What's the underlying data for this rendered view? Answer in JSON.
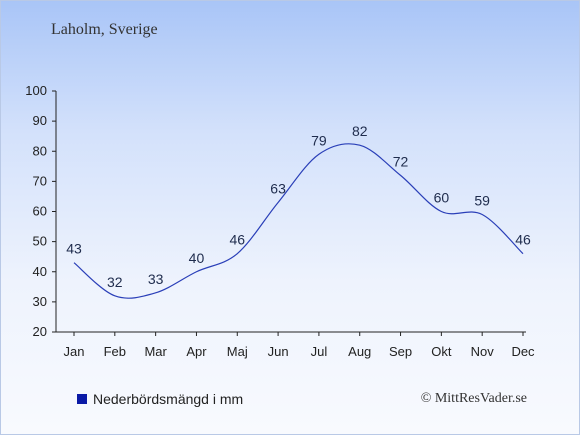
{
  "title": "Laholm, Sverige",
  "legend": {
    "label": "Nederbördsmängd i mm",
    "color": "#0a1aa6"
  },
  "copyright": "© MittResVader.se",
  "chart_data": {
    "type": "line",
    "title": "Laholm, Sverige",
    "categories": [
      "Jan",
      "Feb",
      "Mar",
      "Apr",
      "Maj",
      "Jun",
      "Jul",
      "Aug",
      "Sep",
      "Okt",
      "Nov",
      "Dec"
    ],
    "series": [
      {
        "name": "Nederbördsmängd i mm",
        "values": [
          43,
          32,
          33,
          40,
          46,
          63,
          79,
          82,
          72,
          60,
          59,
          46
        ],
        "color": "#2a3fb8"
      }
    ],
    "ylim": [
      20,
      100
    ],
    "yticks": [
      20,
      30,
      40,
      50,
      60,
      70,
      80,
      90,
      100
    ],
    "grid": false,
    "legend_position": "bottom-left",
    "xlabel": "",
    "ylabel": ""
  }
}
